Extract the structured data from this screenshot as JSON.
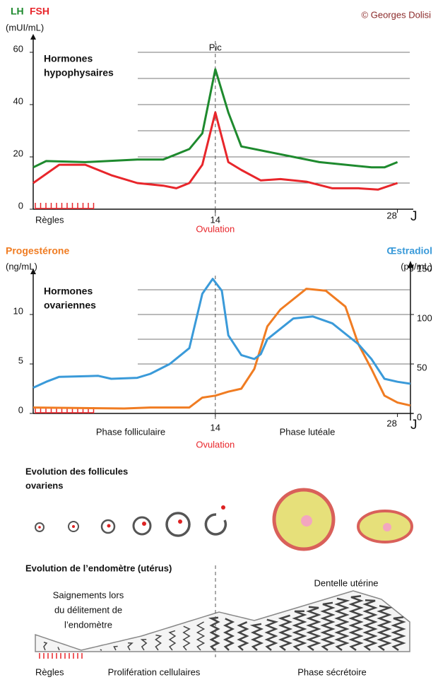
{
  "copyright": "© Georges Dolisi",
  "chart_data": [
    {
      "type": "line",
      "y_label": "(mUI/mL)",
      "annotation": [
        "Hormones",
        "hypophysaires"
      ],
      "peak_label": "Pic",
      "event_labels": [
        "Règles",
        "Ovulation"
      ],
      "x_label": "J",
      "xlim": [
        0,
        29
      ],
      "xticks": [
        14,
        28
      ],
      "ylim": [
        0,
        60
      ],
      "yticks": [
        0,
        20,
        40,
        60
      ],
      "minor_yticks": [
        10,
        30,
        50
      ],
      "grid": true,
      "series": [
        {
          "name": "LH",
          "color": "#1e8a2e",
          "x": [
            0,
            1,
            4,
            8,
            10,
            12,
            13,
            14,
            15,
            16,
            18,
            20,
            22,
            26,
            27,
            28
          ],
          "values": [
            16,
            18.4,
            18,
            19,
            19,
            23,
            29,
            53.5,
            37,
            24,
            22,
            20,
            18,
            16,
            16,
            18
          ]
        },
        {
          "name": "FSH",
          "color": "#e8262b",
          "x": [
            0,
            2,
            4,
            6,
            8,
            10,
            11,
            12,
            13,
            14,
            15,
            16,
            17.5,
            19,
            21,
            23,
            25,
            26.5,
            28
          ],
          "values": [
            10,
            17,
            17,
            13,
            10,
            9,
            8,
            10,
            17,
            37,
            18,
            15,
            11,
            11.5,
            10.5,
            8,
            8,
            7.5,
            10
          ]
        }
      ]
    },
    {
      "type": "line",
      "y_label": "(ng/mL)",
      "y2_label": "(pg/mL)",
      "annotation": [
        "Hormones",
        "ovariennes"
      ],
      "event_labels": [
        "Phase folliculaire",
        "Ovulation",
        "Phase lutéale"
      ],
      "x_label": "J",
      "xlim": [
        0,
        29
      ],
      "xticks": [
        14,
        28
      ],
      "ylim": [
        0,
        15
      ],
      "yticks": [
        0,
        5,
        10
      ],
      "minor_yticks": [
        7.5,
        12.5
      ],
      "grid": true,
      "y2lim": [
        0,
        150
      ],
      "y2ticks": [
        0,
        50,
        100,
        150
      ],
      "series": [
        {
          "name": "Progestérone",
          "color": "#f07c22",
          "axis": "y",
          "x": [
            0,
            7,
            9,
            12,
            13,
            14,
            15,
            16,
            17,
            18,
            19,
            21,
            22.5,
            24,
            25,
            26,
            27,
            28,
            29
          ],
          "values": [
            0.6,
            0.5,
            0.6,
            0.6,
            1.6,
            1.8,
            2.2,
            2.5,
            4.5,
            8.8,
            10.5,
            12.6,
            12.4,
            10.8,
            7,
            4.5,
            1.8,
            1.1,
            0.8
          ]
        },
        {
          "name": "Œstradiol",
          "color": "#3a9ad9",
          "axis": "y2",
          "x": [
            0,
            1,
            2,
            5,
            6,
            8,
            9,
            10.5,
            12,
            13,
            13.8,
            14.5,
            15,
            16,
            17,
            17.5,
            18,
            20,
            21.5,
            23,
            25,
            26,
            27,
            28,
            29
          ],
          "values": [
            26,
            32,
            37,
            38,
            35,
            36,
            40,
            50,
            66,
            121,
            136,
            124,
            79,
            59,
            55,
            60,
            75,
            96,
            98,
            91,
            70,
            55,
            35,
            32,
            30
          ]
        }
      ]
    }
  ],
  "follicles": {
    "title": [
      "Evolution des follicules",
      "ovariens"
    ]
  },
  "endometrium": {
    "title": "Evolution de l’endomètre (utérus)",
    "bleeding": [
      "Saignements lors",
      "du délitement de",
      "l’endomètre"
    ],
    "lace": "Dentelle utérine",
    "phases": [
      "Règles",
      "Prolifération cellulaires",
      "Phase sécrétoire"
    ]
  }
}
